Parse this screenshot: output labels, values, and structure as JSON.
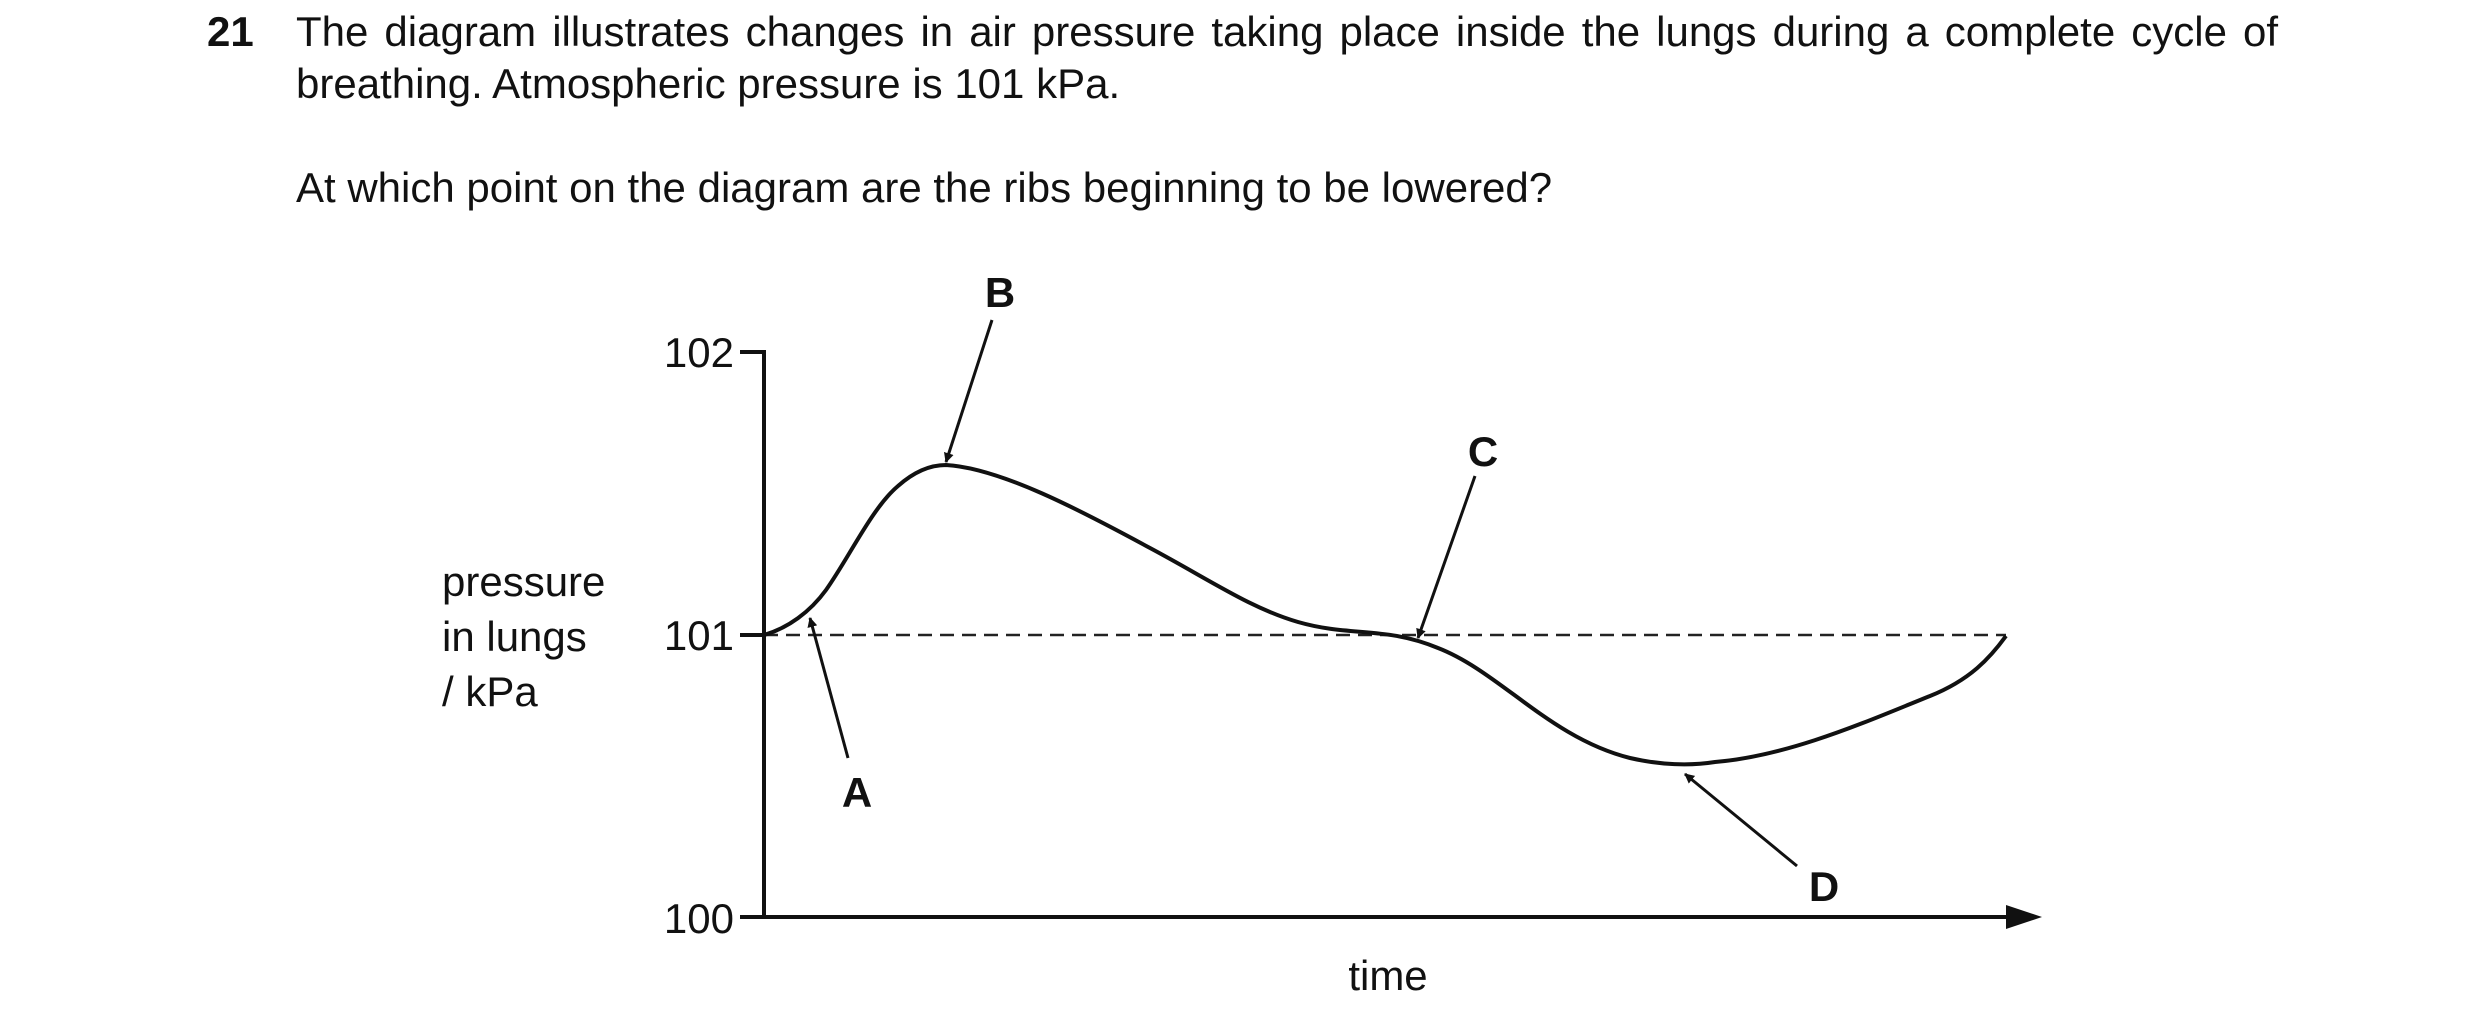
{
  "question": {
    "number": "21",
    "stem": "The diagram illustrates changes in air pressure taking place inside the lungs during a complete cycle of breathing. Atmospheric pressure is 101 kPa.",
    "prompt": "At which point on the diagram are the ribs beginning to be lowered?"
  },
  "diagram": {
    "y_axis_label": [
      "pressure",
      "in lungs",
      "/ kPa"
    ],
    "y_ticks": [
      "102",
      "101",
      "100"
    ],
    "x_axis_label": "time",
    "point_labels": {
      "A": "A",
      "B": "B",
      "C": "C",
      "D": "D"
    },
    "reference_line": "atmospheric pressure (dashed) at 101 kPa"
  }
}
